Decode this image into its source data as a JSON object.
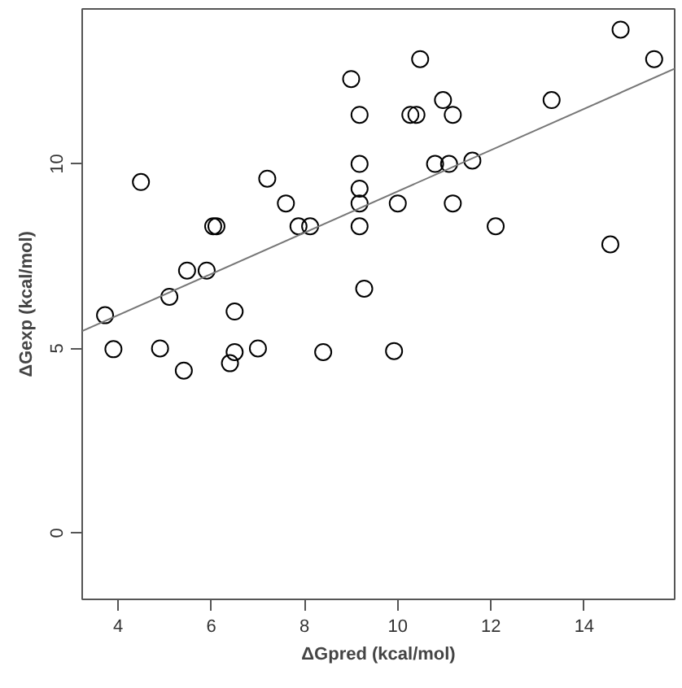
{
  "chart_data": {
    "type": "scatter",
    "xlabel": "ΔGpred (kcal/mol)",
    "ylabel": "ΔGexp (kcal/mol)",
    "xlim": [
      3.23,
      15.94
    ],
    "ylim": [
      -1.8,
      14.2
    ],
    "xticks": [
      4,
      6,
      8,
      10,
      12,
      14
    ],
    "yticks": [
      0,
      5,
      10
    ],
    "grid": false,
    "series": [
      {
        "marker": "circle",
        "color": "#000000",
        "x": [
          4.49,
          7.2,
          7.6,
          6.04,
          6.11,
          7.87,
          8.12,
          5.48,
          5.9,
          5.1,
          6.5,
          3.72,
          3.9,
          4.9,
          5.41,
          6.4,
          6.5,
          7.0,
          8.4,
          9.92,
          14.78,
          15.5,
          10.48,
          9.0,
          10.97,
          13.3,
          9.18,
          10.27,
          10.4,
          11.18,
          9.18,
          10.8,
          11.1,
          11.6,
          9.18,
          9.18,
          10.0,
          11.18,
          9.18,
          12.1,
          14.56,
          9.28
        ],
        "values": [
          9.51,
          9.6,
          8.93,
          8.31,
          8.31,
          8.31,
          8.31,
          7.11,
          7.11,
          6.4,
          6.0,
          5.9,
          4.98,
          5.0,
          4.4,
          4.6,
          4.9,
          5.0,
          4.9,
          4.93,
          13.64,
          12.84,
          12.84,
          12.3,
          11.73,
          11.73,
          11.33,
          11.33,
          11.33,
          11.33,
          10.0,
          10.0,
          10.0,
          10.09,
          9.33,
          8.93,
          8.93,
          8.93,
          8.31,
          8.31,
          7.82,
          6.62
        ]
      },
      {
        "type": "line",
        "marker": "none",
        "color": "#777777",
        "x": [
          3.23,
          15.94
        ],
        "values": [
          5.47,
          12.58
        ]
      }
    ]
  }
}
